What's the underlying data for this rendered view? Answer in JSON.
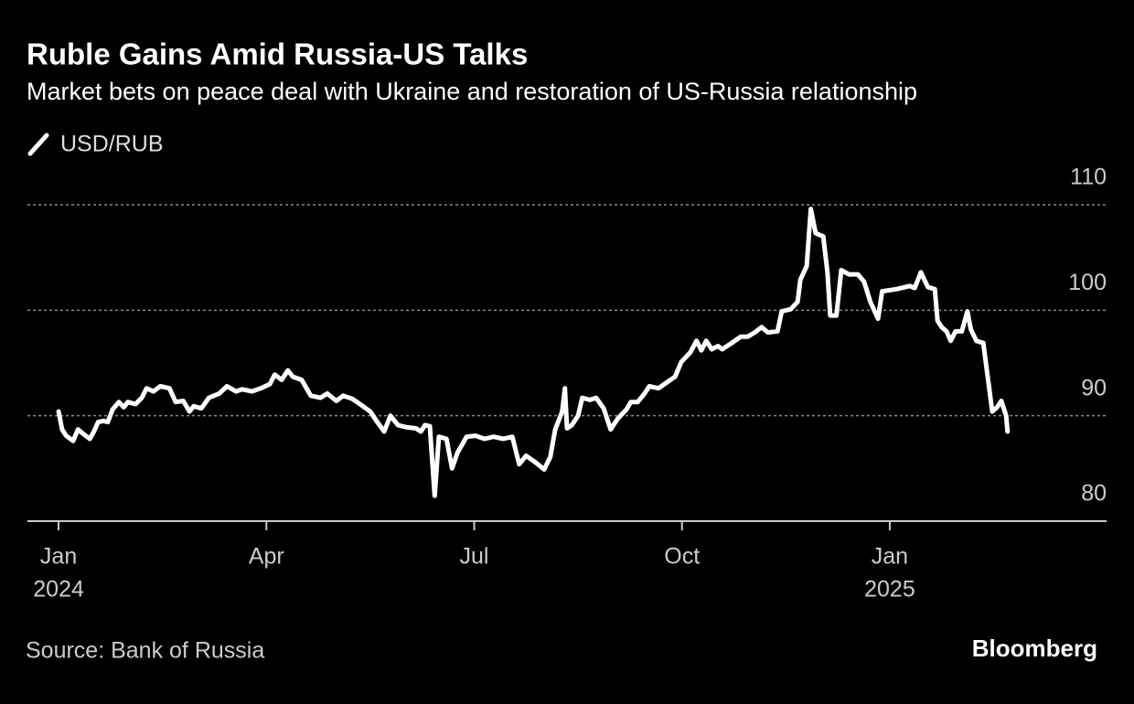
{
  "chart_data": {
    "type": "line",
    "title": "Ruble Gains Amid Russia-US Talks",
    "subtitle": "Market bets on peace deal with Ukraine and restoration of US-Russia relationship",
    "x": [
      0,
      0.05,
      0.11,
      0.21,
      0.28,
      0.37,
      0.45,
      0.51,
      0.57,
      0.65,
      0.71,
      0.78,
      0.87,
      0.94,
      1.0,
      1.11,
      1.2,
      1.27,
      1.37,
      1.47,
      1.6,
      1.69,
      1.8,
      1.89,
      1.95,
      2.06,
      2.17,
      2.32,
      2.43,
      2.56,
      2.65,
      2.79,
      2.92,
      3.05,
      3.12,
      3.22,
      3.31,
      3.38,
      3.51,
      3.64,
      3.78,
      3.88,
      4.01,
      4.11,
      4.24,
      4.37,
      4.5,
      4.59,
      4.7,
      4.79,
      4.9,
      5.03,
      5.16,
      5.23,
      5.29,
      5.36,
      5.43,
      5.49,
      5.6,
      5.68,
      5.76,
      5.89,
      6.02,
      6.15,
      6.28,
      6.42,
      6.55,
      6.65,
      6.75,
      6.88,
      7.01,
      7.1,
      7.17,
      7.27,
      7.31,
      7.34,
      7.41,
      7.5,
      7.56,
      7.67,
      7.76,
      7.87,
      7.97,
      8.07,
      8.2,
      8.26,
      8.36,
      8.46,
      8.53,
      8.66,
      8.79,
      8.9,
      8.99,
      9.12,
      9.21,
      9.28,
      9.35,
      9.43,
      9.52,
      9.58,
      9.72,
      9.85,
      9.95,
      10.05,
      10.15,
      10.24,
      10.38,
      10.44,
      10.57,
      10.67,
      10.71,
      10.8,
      10.86,
      10.93,
      11.04,
      11.1,
      11.14,
      11.23,
      11.3,
      11.41,
      11.54,
      11.63,
      11.72,
      11.83,
      11.89,
      12.09,
      12.29,
      12.36,
      12.45,
      12.55,
      12.65,
      12.69,
      12.75,
      12.82,
      12.88,
      12.95,
      13.04,
      13.12,
      13.17,
      13.25,
      13.35,
      13.41,
      13.48,
      13.55,
      13.61,
      13.68,
      13.7
    ],
    "series": [
      {
        "name": "USD/RUB",
        "color": "#ffffff",
        "values": [
          90.4,
          88.7,
          88.1,
          87.6,
          88.7,
          88.2,
          87.8,
          88.5,
          89.4,
          89.5,
          89.4,
          90.6,
          91.3,
          90.8,
          91.3,
          91.1,
          91.7,
          92.6,
          92.3,
          92.8,
          92.6,
          91.3,
          91.4,
          90.4,
          90.9,
          90.7,
          91.7,
          92.1,
          92.8,
          92.3,
          92.5,
          92.3,
          92.6,
          93.0,
          93.9,
          93.4,
          94.3,
          93.7,
          93.4,
          91.9,
          91.7,
          92.1,
          91.4,
          91.9,
          91.6,
          91.0,
          90.4,
          89.5,
          88.5,
          90.0,
          89.1,
          88.9,
          88.8,
          88.5,
          89.1,
          89.0,
          82.4,
          88.0,
          87.8,
          85.0,
          86.5,
          88.0,
          88.1,
          87.8,
          88.0,
          87.8,
          88.0,
          85.4,
          86.2,
          85.6,
          84.9,
          86.1,
          88.7,
          90.4,
          92.6,
          88.8,
          89.1,
          90.0,
          91.7,
          91.5,
          91.7,
          90.7,
          88.7,
          89.7,
          90.6,
          91.3,
          91.3,
          92.1,
          92.8,
          92.6,
          93.2,
          93.7,
          95.1,
          96.0,
          97.1,
          96.2,
          97.1,
          96.3,
          96.6,
          96.3,
          96.9,
          97.5,
          97.5,
          97.9,
          98.4,
          97.9,
          98.0,
          99.9,
          100.1,
          100.8,
          102.9,
          104.2,
          109.6,
          107.3,
          107.0,
          103.6,
          99.5,
          99.5,
          103.8,
          103.4,
          103.4,
          102.7,
          100.8,
          99.2,
          101.8,
          102.0,
          102.3,
          102.1,
          103.6,
          102.2,
          102.0,
          99.0,
          98.4,
          98.0,
          97.1,
          98.0,
          98.0,
          99.9,
          98.2,
          97.1,
          96.9,
          93.9,
          90.4,
          90.8,
          91.4,
          90.0,
          88.5
        ]
      }
    ],
    "xlim": [
      -0.45,
      15.13
    ],
    "xticks": [
      {
        "value": 0,
        "label": "Jan"
      },
      {
        "value": 3,
        "label": "Apr"
      },
      {
        "value": 6,
        "label": "Jul"
      },
      {
        "value": 9,
        "label": "Oct"
      },
      {
        "value": 12,
        "label": "Jan"
      }
    ],
    "xtick_years": [
      {
        "value": 0,
        "label": "2024"
      },
      {
        "value": 12,
        "label": "2025"
      }
    ],
    "ylim": [
      80,
      110
    ],
    "yticks": [
      80,
      90,
      100,
      110
    ],
    "grid": true,
    "source": "Source: Bank of Russia"
  },
  "branding": "Bloomberg"
}
